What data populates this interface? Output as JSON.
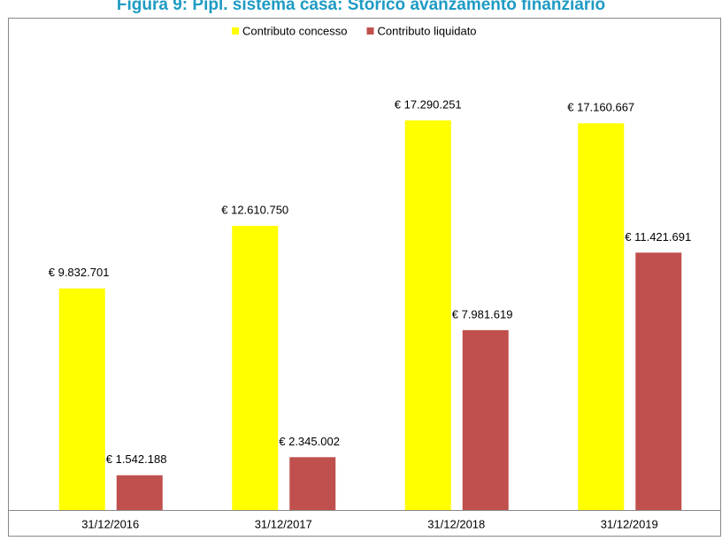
{
  "chart_data": {
    "type": "bar",
    "title": "Figura 9: Pipl. sistema casa: Storico avanzamento finanziario",
    "categories": [
      "31/12/2016",
      "31/12/2017",
      "31/12/2018",
      "31/12/2019"
    ],
    "series": [
      {
        "name": "Contributo concesso",
        "color": "#ffff00",
        "values": [
          9832701,
          12610750,
          17290251,
          17160667
        ],
        "value_labels": [
          "€ 9.832.701",
          "€ 12.610.750",
          "€ 17.290.251",
          "€ 17.160.667"
        ]
      },
      {
        "name": "Contributo liquidato",
        "color": "#c0504d",
        "values": [
          1542188,
          2345002,
          7981619,
          11421691
        ],
        "value_labels": [
          "€ 1.542.188",
          "€ 2.345.002",
          "€ 7.981.619",
          "€ 11.421.691"
        ]
      }
    ],
    "ylim": [
      0,
      20000000
    ],
    "legend": "top"
  }
}
